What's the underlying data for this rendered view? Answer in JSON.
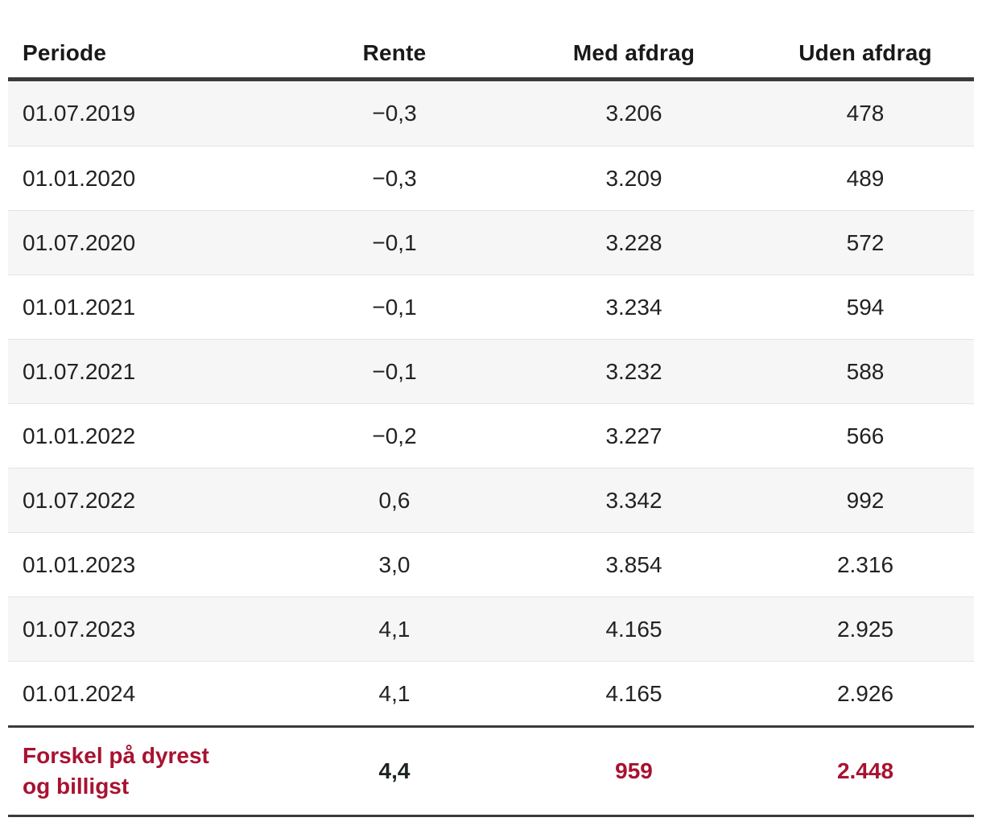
{
  "colors": {
    "accent_red": "#a81231",
    "text_dark": "#222222",
    "header_rule": "#3b3b3b",
    "row_alt_bg": "#f6f6f6",
    "row_divider": "#e4e4e4"
  },
  "chart_data": {
    "type": "table",
    "columns": [
      "Periode",
      "Rente",
      "Med afdrag",
      "Uden afdrag"
    ],
    "rows": [
      [
        "01.07.2019",
        "−0,3",
        "3.206",
        "478"
      ],
      [
        "01.01.2020",
        "−0,3",
        "3.209",
        "489"
      ],
      [
        "01.07.2020",
        "−0,1",
        "3.228",
        "572"
      ],
      [
        "01.01.2021",
        "−0,1",
        "3.234",
        "594"
      ],
      [
        "01.07.2021",
        "−0,1",
        "3.232",
        "588"
      ],
      [
        "01.01.2022",
        "−0,2",
        "3.227",
        "566"
      ],
      [
        "01.07.2022",
        "0,6",
        "3.342",
        "992"
      ],
      [
        "01.01.2023",
        "3,0",
        "3.854",
        "2.316"
      ],
      [
        "01.07.2023",
        "4,1",
        "4.165",
        "2.925"
      ],
      [
        "01.01.2024",
        "4,1",
        "4.165",
        "2.926"
      ]
    ],
    "summary_row": {
      "label": "Forskel på dyrest og billigst",
      "rente": "4,4",
      "med_afdrag": "959",
      "uden_afdrag": "2.448"
    }
  }
}
